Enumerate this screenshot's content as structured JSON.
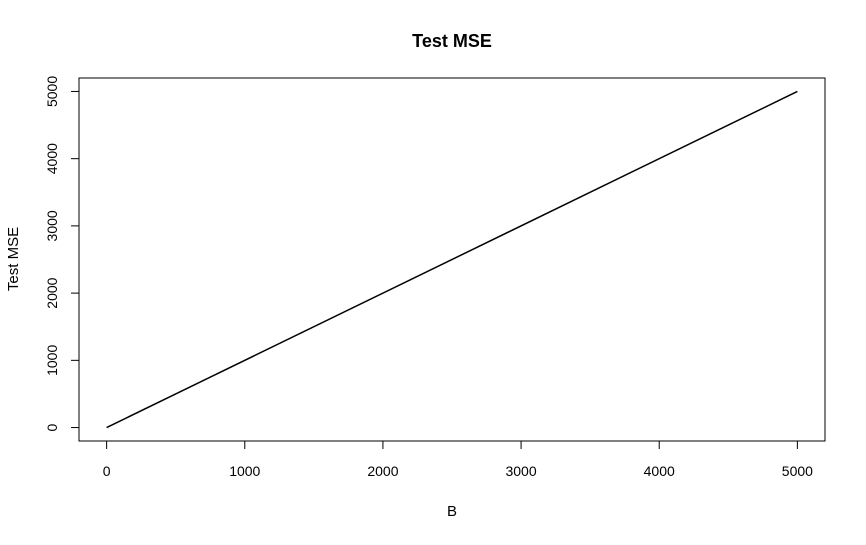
{
  "chart_data": {
    "type": "line",
    "title": "Test MSE",
    "xlabel": "B",
    "ylabel": "Test MSE",
    "xlim": [
      -200,
      5200
    ],
    "ylim": [
      -200,
      5200
    ],
    "x_ticks": [
      0,
      1000,
      2000,
      3000,
      4000,
      5000
    ],
    "y_ticks": [
      0,
      1000,
      2000,
      3000,
      4000,
      5000
    ],
    "x_tick_labels": [
      "0",
      "1000",
      "2000",
      "3000",
      "4000",
      "5000"
    ],
    "y_tick_labels": [
      "0",
      "1000",
      "2000",
      "3000",
      "4000",
      "5000"
    ],
    "grid": false,
    "series": [
      {
        "x": [
          0,
          5000
        ],
        "y": [
          0,
          5000
        ],
        "color": "#000000"
      }
    ]
  }
}
